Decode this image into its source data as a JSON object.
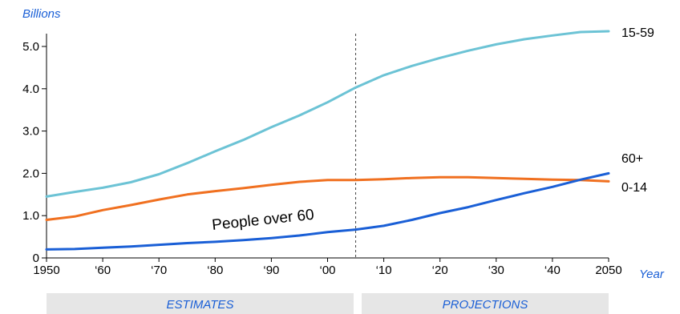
{
  "chart_data": {
    "type": "line",
    "ylabel": "Billions",
    "xlabel": "Year",
    "xlim": [
      1950,
      2050
    ],
    "ylim": [
      0,
      5.3
    ],
    "y_ticks": [
      {
        "value": 0,
        "label": "0"
      },
      {
        "value": 1,
        "label": "1.0"
      },
      {
        "value": 2,
        "label": "2.0"
      },
      {
        "value": 3,
        "label": "3.0"
      },
      {
        "value": 4,
        "label": "4.0"
      },
      {
        "value": 5,
        "label": "5.0"
      }
    ],
    "x_ticks": [
      {
        "value": 1950,
        "label": "1950"
      },
      {
        "value": 1960,
        "label": "‘60"
      },
      {
        "value": 1970,
        "label": "‘70"
      },
      {
        "value": 1980,
        "label": "‘80"
      },
      {
        "value": 1990,
        "label": "‘90"
      },
      {
        "value": 2000,
        "label": "‘00"
      },
      {
        "value": 2010,
        "label": "‘10"
      },
      {
        "value": 2020,
        "label": "‘20"
      },
      {
        "value": 2030,
        "label": "‘30"
      },
      {
        "value": 2040,
        "label": "‘40"
      },
      {
        "value": 2050,
        "label": "2050"
      }
    ],
    "divider_year": 2005,
    "bands": [
      {
        "label": "ESTIMATES",
        "from": 1950,
        "to": 2005
      },
      {
        "label": "PROJECTIONS",
        "from": 2005,
        "to": 2050
      }
    ],
    "grid": false,
    "series": [
      {
        "name": "15-59",
        "color": "#6cc3d5",
        "x": [
          1950,
          1955,
          1960,
          1965,
          1970,
          1975,
          1980,
          1985,
          1990,
          1995,
          2000,
          2005,
          2010,
          2015,
          2020,
          2025,
          2030,
          2035,
          2040,
          2045,
          2050
        ],
        "y": [
          1.45,
          1.56,
          1.66,
          1.79,
          1.98,
          2.24,
          2.52,
          2.79,
          3.09,
          3.37,
          3.68,
          4.03,
          4.32,
          4.54,
          4.73,
          4.9,
          5.05,
          5.17,
          5.26,
          5.34,
          5.36
        ]
      },
      {
        "name": "0-14",
        "color": "#f07020",
        "x": [
          1950,
          1955,
          1960,
          1965,
          1970,
          1975,
          1980,
          1985,
          1990,
          1995,
          2000,
          2005,
          2010,
          2015,
          2020,
          2025,
          2030,
          2035,
          2040,
          2045,
          2050
        ],
        "y": [
          0.9,
          0.98,
          1.13,
          1.25,
          1.38,
          1.5,
          1.58,
          1.65,
          1.73,
          1.8,
          1.84,
          1.84,
          1.86,
          1.89,
          1.91,
          1.91,
          1.89,
          1.87,
          1.85,
          1.84,
          1.81
        ]
      },
      {
        "name": "60+",
        "color": "#1a5fd6",
        "x": [
          1950,
          1955,
          1960,
          1965,
          1970,
          1975,
          1980,
          1985,
          1990,
          1995,
          2000,
          2005,
          2010,
          2015,
          2020,
          2025,
          2030,
          2035,
          2040,
          2045,
          2050
        ],
        "y": [
          0.2,
          0.21,
          0.24,
          0.27,
          0.31,
          0.35,
          0.38,
          0.42,
          0.47,
          0.53,
          0.61,
          0.67,
          0.76,
          0.9,
          1.06,
          1.2,
          1.37,
          1.53,
          1.68,
          1.85,
          2.0
        ]
      }
    ],
    "annotation": {
      "text": "People over 60"
    }
  }
}
